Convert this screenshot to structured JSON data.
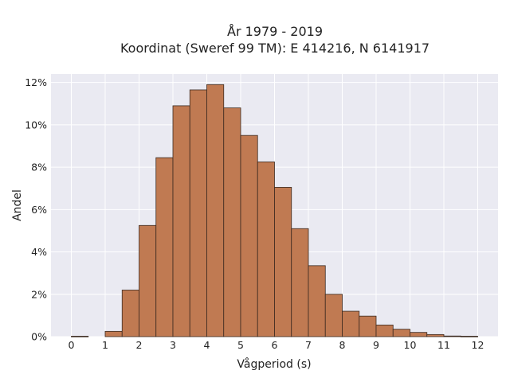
{
  "chart_data": {
    "type": "bar",
    "title": [
      "År 1979 - 2019",
      "Koordinat (Sweref 99 TM): E 414216, N 6141917"
    ],
    "xlabel": "Vågperiod (s)",
    "ylabel": "Andel",
    "xlim": [
      -0.6,
      12.6
    ],
    "ylim": [
      0,
      12.4
    ],
    "x_ticks": [
      0,
      1,
      2,
      3,
      4,
      5,
      6,
      7,
      8,
      9,
      10,
      11,
      12
    ],
    "x_tick_labels": [
      "0",
      "1",
      "2",
      "3",
      "4",
      "5",
      "6",
      "7",
      "8",
      "9",
      "10",
      "11",
      "12"
    ],
    "y_ticks": [
      0,
      2,
      4,
      6,
      8,
      10,
      12
    ],
    "y_tick_labels": [
      "0%",
      "2%",
      "4%",
      "6%",
      "8%",
      "10%",
      "12%"
    ],
    "bin_width": 0.5,
    "bin_starts": [
      0,
      0.5,
      1,
      1.5,
      2,
      2.5,
      3,
      3.5,
      4,
      4.5,
      5,
      5.5,
      6,
      6.5,
      7,
      7.5,
      8,
      8.5,
      9,
      9.5,
      10,
      10.5,
      11,
      11.5
    ],
    "values": [
      0.02,
      0.0,
      0.25,
      2.2,
      5.25,
      8.45,
      10.9,
      11.65,
      11.9,
      10.8,
      9.5,
      8.25,
      7.05,
      5.1,
      3.35,
      2.0,
      1.2,
      0.97,
      0.55,
      0.35,
      0.2,
      0.1,
      0.03,
      0.02
    ],
    "grid": true,
    "colors": {
      "bar": "#c07a52",
      "bar_edge": "#3b2a20",
      "plot_bg": "#eaeaf2",
      "grid": "#ffffff"
    }
  }
}
